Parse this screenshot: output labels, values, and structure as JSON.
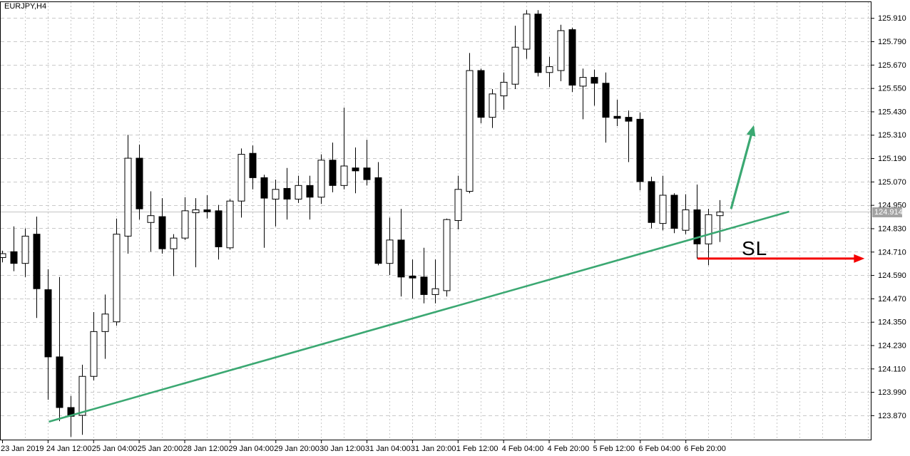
{
  "window": {
    "title": "EURJPY,H4"
  },
  "price_axis": {
    "labels": [
      "125.910",
      "125.790",
      "125.670",
      "125.550",
      "125.430",
      "125.310",
      "125.190",
      "125.070",
      "124.950",
      "124.830",
      "124.710",
      "124.590",
      "124.470",
      "124.350",
      "124.230",
      "124.110",
      "123.990",
      "123.870"
    ],
    "current_price_label": "124.914"
  },
  "time_axis": {
    "labels": [
      {
        "label": "23 Jan 2019",
        "candle_index": 0
      },
      {
        "label": "24 Jan 12:00",
        "candle_index": 4
      },
      {
        "label": "25 Jan 04:00",
        "candle_index": 8
      },
      {
        "label": "25 Jan 20:00",
        "candle_index": 12
      },
      {
        "label": "28 Jan 12:00",
        "candle_index": 16
      },
      {
        "label": "29 Jan 04:00",
        "candle_index": 20
      },
      {
        "label": "29 Jan 20:00",
        "candle_index": 24
      },
      {
        "label": "30 Jan 12:00",
        "candle_index": 28
      },
      {
        "label": "31 Jan 04:00",
        "candle_index": 32
      },
      {
        "label": "31 Jan 20:00",
        "candle_index": 36
      },
      {
        "label": "1 Feb 12:00",
        "candle_index": 40
      },
      {
        "label": "4 Feb 04:00",
        "candle_index": 44
      },
      {
        "label": "4 Feb 20:00",
        "candle_index": 48
      },
      {
        "label": "5 Feb 12:00",
        "candle_index": 52
      },
      {
        "label": "6 Feb 04:00",
        "candle_index": 56
      },
      {
        "label": "6 Feb 20:00",
        "candle_index": 60
      }
    ]
  },
  "annotations": {
    "sl_label": "SL",
    "trendline_color": "#3BA872",
    "up_arrow_color": "#3BA872",
    "sl_arrow_color": "#F40000"
  },
  "colors": {
    "grid": "#c9c9c9",
    "border": "#000000",
    "bull_body": "#ffffff",
    "bear_body": "#000000",
    "wick": "#000000",
    "current_price_line": "#c4c4c4",
    "price_tag_bg": "#a3a3a3",
    "price_tag_text": "#ffffff",
    "axis_text": "#000000"
  },
  "chart_data": {
    "type": "candlestick",
    "symbol": "EURJPY",
    "timeframe": "H4",
    "title": "EURJPY,H4",
    "ylim": [
      123.745,
      125.991
    ],
    "grid": true,
    "current_price": 124.914,
    "price_tick_step": 0.12,
    "candles": [
      [
        "23 Jan 20:00",
        124.68,
        124.715,
        124.655,
        124.7
      ],
      [
        "24 Jan 00:00",
        124.71,
        124.84,
        124.61,
        124.65
      ],
      [
        "24 Jan 04:00",
        124.65,
        124.83,
        124.58,
        124.79
      ],
      [
        "24 Jan 08:00",
        124.8,
        124.89,
        124.37,
        124.52
      ],
      [
        "24 Jan 12:00",
        124.515,
        124.62,
        123.95,
        124.17
      ],
      [
        "24 Jan 16:00",
        124.17,
        124.58,
        123.84,
        123.91
      ],
      [
        "24 Jan 20:00",
        123.91,
        123.97,
        123.76,
        123.865
      ],
      [
        "25 Jan 00:00",
        123.87,
        124.13,
        123.77,
        124.07
      ],
      [
        "25 Jan 04:00",
        124.07,
        124.4,
        124.05,
        124.3
      ],
      [
        "25 Jan 08:00",
        124.3,
        124.49,
        124.16,
        124.39
      ],
      [
        "25 Jan 12:00",
        124.35,
        124.88,
        124.33,
        124.8
      ],
      [
        "25 Jan 16:00",
        124.79,
        125.31,
        124.7,
        125.19
      ],
      [
        "25 Jan 20:00",
        125.19,
        125.26,
        124.875,
        124.93
      ],
      [
        "28 Jan 00:00",
        124.86,
        125.02,
        124.71,
        124.895
      ],
      [
        "28 Jan 04:00",
        124.89,
        124.985,
        124.7,
        124.725
      ],
      [
        "28 Jan 08:00",
        124.725,
        124.8,
        124.585,
        124.78
      ],
      [
        "28 Jan 12:00",
        124.78,
        124.99,
        124.77,
        124.92
      ],
      [
        "28 Jan 16:00",
        124.91,
        124.985,
        124.63,
        124.925
      ],
      [
        "28 Jan 20:00",
        124.925,
        125.0,
        124.88,
        124.915
      ],
      [
        "29 Jan 00:00",
        124.92,
        124.95,
        124.67,
        124.735
      ],
      [
        "29 Jan 04:00",
        124.73,
        124.98,
        124.72,
        124.97
      ],
      [
        "29 Jan 08:00",
        124.97,
        125.24,
        124.885,
        125.21
      ],
      [
        "29 Jan 12:00",
        125.215,
        125.255,
        125.03,
        125.09
      ],
      [
        "29 Jan 16:00",
        125.09,
        125.105,
        124.73,
        124.985
      ],
      [
        "29 Jan 20:00",
        124.98,
        125.08,
        124.84,
        125.03
      ],
      [
        "30 Jan 00:00",
        125.035,
        125.14,
        124.875,
        124.98
      ],
      [
        "30 Jan 04:00",
        124.98,
        125.1,
        124.96,
        125.05
      ],
      [
        "30 Jan 08:00",
        125.05,
        125.1,
        124.875,
        124.99
      ],
      [
        "30 Jan 12:00",
        124.99,
        125.21,
        124.955,
        125.18
      ],
      [
        "30 Jan 16:00",
        125.18,
        125.27,
        125.015,
        125.05
      ],
      [
        "30 Jan 20:00",
        125.05,
        125.45,
        125.03,
        125.15
      ],
      [
        "31 Jan 00:00",
        125.14,
        125.245,
        125.01,
        125.125
      ],
      [
        "31 Jan 04:00",
        125.14,
        125.285,
        125.05,
        125.08
      ],
      [
        "31 Jan 08:00",
        125.09,
        125.17,
        124.64,
        124.65
      ],
      [
        "31 Jan 12:00",
        124.65,
        124.885,
        124.59,
        124.77
      ],
      [
        "31 Jan 16:00",
        124.77,
        124.93,
        124.48,
        124.58
      ],
      [
        "31 Jan 20:00",
        124.585,
        124.67,
        124.47,
        124.575
      ],
      [
        "1 Feb 00:00",
        124.58,
        124.73,
        124.445,
        124.49
      ],
      [
        "1 Feb 04:00",
        124.49,
        124.67,
        124.445,
        124.52
      ],
      [
        "1 Feb 08:00",
        124.51,
        124.88,
        124.48,
        124.875
      ],
      [
        "1 Feb 12:00",
        124.87,
        125.1,
        124.825,
        125.03
      ],
      [
        "1 Feb 16:00",
        125.02,
        125.73,
        125.01,
        125.64
      ],
      [
        "1 Feb 20:00",
        125.64,
        125.65,
        125.37,
        125.4
      ],
      [
        "4 Feb 00:00",
        125.4,
        125.545,
        125.345,
        125.52
      ],
      [
        "4 Feb 04:00",
        125.51,
        125.63,
        125.44,
        125.58
      ],
      [
        "4 Feb 08:00",
        125.57,
        125.87,
        125.545,
        125.76
      ],
      [
        "4 Feb 12:00",
        125.75,
        125.95,
        125.7,
        125.93
      ],
      [
        "4 Feb 16:00",
        125.93,
        125.95,
        125.61,
        125.63
      ],
      [
        "4 Feb 20:00",
        125.63,
        125.71,
        125.555,
        125.66
      ],
      [
        "5 Feb 00:00",
        125.64,
        125.875,
        125.585,
        125.845
      ],
      [
        "5 Feb 04:00",
        125.85,
        125.86,
        125.53,
        125.565
      ],
      [
        "5 Feb 08:00",
        125.56,
        125.65,
        125.39,
        125.605
      ],
      [
        "5 Feb 12:00",
        125.605,
        125.645,
        125.46,
        125.575
      ],
      [
        "5 Feb 16:00",
        125.575,
        125.63,
        125.27,
        125.4
      ],
      [
        "5 Feb 20:00",
        125.405,
        125.49,
        125.355,
        125.395
      ],
      [
        "6 Feb 00:00",
        125.4,
        125.435,
        125.17,
        125.38
      ],
      [
        "6 Feb 04:00",
        125.39,
        125.425,
        125.025,
        125.07
      ],
      [
        "6 Feb 08:00",
        125.07,
        125.095,
        124.83,
        124.86
      ],
      [
        "6 Feb 12:00",
        124.855,
        125.1,
        124.82,
        125.0
      ],
      [
        "6 Feb 16:00",
        125.0,
        125.01,
        124.805,
        124.83
      ],
      [
        "6 Feb 20:00",
        124.82,
        125.005,
        124.8,
        124.925
      ],
      [
        "7 Feb 00:00",
        124.925,
        125.055,
        124.675,
        124.75
      ],
      [
        "7 Feb 04:00",
        124.75,
        124.93,
        124.64,
        124.9
      ],
      [
        "7 Feb 08:00",
        124.895,
        124.975,
        124.76,
        124.914
      ]
    ],
    "trendline": {
      "x1_index": 4.1,
      "price1": 123.837,
      "x2_index": 69.1,
      "price2": 124.916
    },
    "up_arrow": {
      "x1_index": 64.0,
      "price1": 124.93,
      "x2_index": 66.0,
      "price2": 125.36
    },
    "sl_line": {
      "x1_index": 61.05,
      "x2_index": 75.6,
      "price": 124.675
    }
  }
}
